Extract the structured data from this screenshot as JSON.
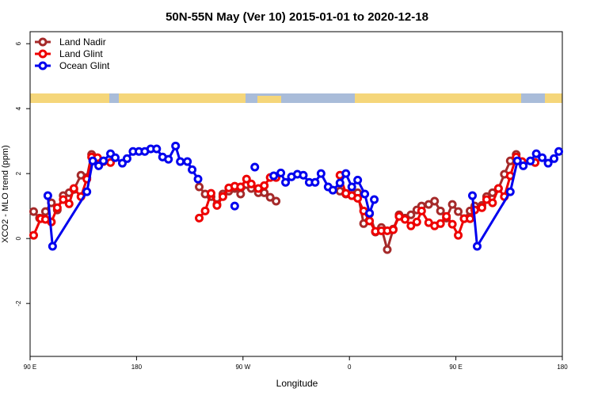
{
  "chart_data": {
    "type": "line",
    "title": "50N-55N May (Ver 10)   2015-01-01 to 2020-12-18",
    "xlabel": "Longitude",
    "ylabel": "XCO2 - MLO trend (ppm)",
    "xlim": [
      90,
      540
    ],
    "xticks": [
      {
        "value": 90,
        "label": "90 E"
      },
      180,
      {
        "value": 270,
        "label": "90 W"
      },
      {
        "value": 360,
        "label": "0"
      },
      {
        "value": 450,
        "label": "90 E"
      },
      {
        "value": 540,
        "label": "180"
      }
    ],
    "ylim": [
      -3.63,
      6.37
    ],
    "yticks": [
      -2,
      0,
      2,
      4,
      6
    ],
    "legend": "top-left",
    "series": [
      {
        "name": "Land Nadir",
        "color": "#a52a2a",
        "x": [
          93,
          98,
          103,
          108,
          113,
          118,
          123,
          127,
          133,
          138,
          142,
          146,
          190,
          233,
          238,
          243,
          248,
          253,
          258,
          263,
          268,
          273,
          277,
          283,
          288,
          293,
          298,
          325,
          352,
          357,
          362,
          367,
          372,
          377,
          382,
          387,
          392,
          397,
          402,
          407,
          412,
          417,
          421,
          427,
          432,
          437,
          442,
          447,
          452,
          457,
          462,
          466,
          472,
          476,
          481,
          486,
          491,
          496,
          501
        ],
        "values": [
          0.83,
          0.63,
          0.83,
          1.1,
          0.88,
          1.32,
          1.41,
          1.51,
          1.95,
          1.88,
          2.59,
          2.46,
          null,
          1.59,
          1.37,
          1.29,
          1.05,
          1.37,
          1.46,
          1.54,
          1.37,
          1.66,
          1.54,
          1.41,
          1.41,
          1.27,
          1.15,
          null,
          1.46,
          1.37,
          1.41,
          1.41,
          0.46,
          0.76,
          0.2,
          0.34,
          -0.34,
          0.29,
          0.73,
          0.63,
          0.73,
          0.88,
          1.0,
          1.05,
          1.15,
          0.85,
          0.63,
          1.05,
          0.83,
          0.61,
          0.85,
          1.0,
          1.02,
          1.29,
          1.41,
          1.54,
          1.98,
          2.39,
          2.59
        ]
      },
      {
        "name": "Land Glint",
        "color": "#ee0000",
        "x": [
          93,
          99,
          103,
          108,
          113,
          118,
          123,
          127,
          133,
          138,
          142,
          147,
          152,
          158,
          190,
          233,
          238,
          243,
          248,
          253,
          258,
          263,
          268,
          273,
          277,
          283,
          288,
          293,
          298,
          325,
          352,
          357,
          362,
          367,
          372,
          377,
          382,
          387,
          392,
          397,
          402,
          407,
          412,
          417,
          421,
          427,
          432,
          437,
          442,
          447,
          452,
          457,
          462,
          466,
          472,
          476,
          481,
          486,
          491,
          496,
          501,
          506,
          517
        ],
        "values": [
          0.1,
          0.61,
          0.59,
          0.51,
          0.95,
          1.2,
          1.07,
          1.54,
          1.29,
          1.83,
          2.51,
          2.49,
          2.37,
          2.34,
          null,
          0.63,
          0.85,
          1.39,
          1.02,
          1.29,
          1.56,
          1.61,
          1.59,
          1.83,
          1.68,
          1.54,
          1.63,
          1.88,
          1.88,
          null,
          1.95,
          1.39,
          1.32,
          1.24,
          0.85,
          0.54,
          0.22,
          0.24,
          0.24,
          0.27,
          0.68,
          0.59,
          0.39,
          0.51,
          0.85,
          0.49,
          0.39,
          0.46,
          0.68,
          0.44,
          0.1,
          0.61,
          0.61,
          0.88,
          0.95,
          1.2,
          1.1,
          1.54,
          1.29,
          1.93,
          2.51,
          2.37,
          2.34
        ]
      },
      {
        "name": "Ocean Glint",
        "color": "#0000ee",
        "x": [
          105,
          109,
          138,
          143,
          148,
          152,
          158,
          162,
          168,
          172,
          177,
          182,
          187,
          192,
          197,
          202,
          207,
          213,
          217,
          223,
          227,
          232,
          250,
          263,
          270,
          280,
          290,
          296,
          302,
          306,
          311,
          316,
          321,
          326,
          331,
          336,
          342,
          346,
          352,
          357,
          362,
          367,
          373,
          377,
          381,
          420,
          464,
          468,
          496,
          502,
          507,
          513,
          518,
          523,
          528,
          533,
          537
        ],
        "values": [
          1.32,
          -0.24,
          1.44,
          2.39,
          2.24,
          2.39,
          2.61,
          2.49,
          2.32,
          2.46,
          2.68,
          2.68,
          2.68,
          2.76,
          2.76,
          2.51,
          2.44,
          2.85,
          2.37,
          2.37,
          2.12,
          1.83,
          null,
          1.0,
          null,
          2.2,
          null,
          1.93,
          2.02,
          1.73,
          1.9,
          1.98,
          1.95,
          1.73,
          1.73,
          2.0,
          1.59,
          1.49,
          1.71,
          2.0,
          1.59,
          1.8,
          1.37,
          0.78,
          1.2,
          null,
          1.32,
          -0.24,
          1.44,
          2.39,
          2.24,
          2.39,
          2.61,
          2.49,
          2.32,
          2.46,
          2.68
        ]
      }
    ]
  }
}
